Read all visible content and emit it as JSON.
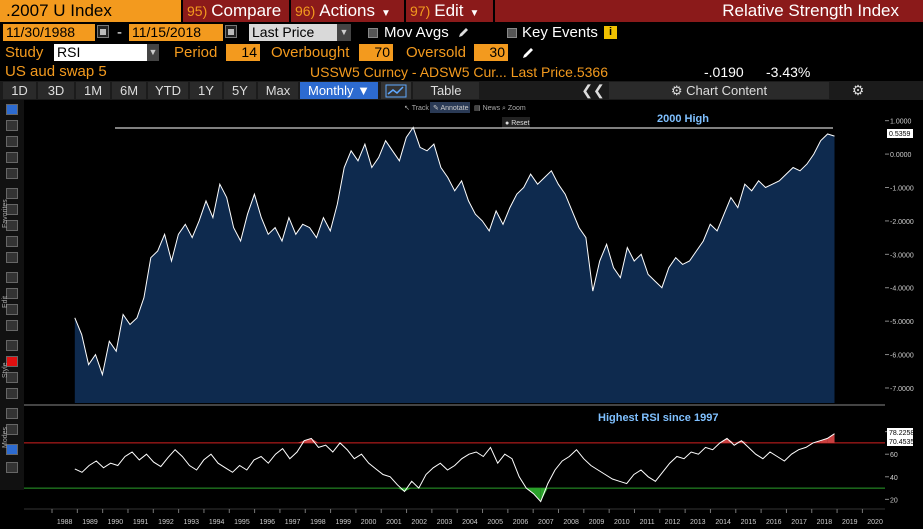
{
  "header": {
    "ticker": ".2007 U Index",
    "compare": {
      "num": "95)",
      "label": "Compare"
    },
    "actions": {
      "num": "96)",
      "label": "Actions"
    },
    "edit": {
      "num": "97)",
      "label": "Edit"
    },
    "study_title": "Relative Strength Index"
  },
  "controls": {
    "start_date": "11/30/1988",
    "dash": "-",
    "end_date": "11/15/2018",
    "price_field": "Last Price",
    "mov_avgs_label": "Mov Avgs",
    "key_events_label": "Key Events",
    "info_icon": "i",
    "study_label": "Study",
    "study_value": "RSI",
    "period_label": "Period",
    "period_value": "14",
    "overbought_label": "Overbought",
    "overbought_value": "70",
    "oversold_label": "Oversold",
    "oversold_value": "30"
  },
  "security": {
    "name": "US aud swap 5",
    "desc": "USSW5 Curncy - ADSW5 Cur... Last Price",
    "last": ".5366",
    "change": "-.0190",
    "pct": "-3.43%"
  },
  "toolbar": {
    "periods": [
      "1D",
      "3D",
      "1M",
      "6M",
      "YTD",
      "1Y",
      "5Y",
      "Max"
    ],
    "frequency": "Monthly",
    "table_label": "Table",
    "chart_content_label": "Chart Content"
  },
  "chart_tools": {
    "track": "Track",
    "annotate": "Annotate",
    "news": "News",
    "zoom": "Zoom",
    "reset": "Reset"
  },
  "side_labels": {
    "favorites": "Favorites",
    "edit": "Edit",
    "style": "Style",
    "modes": "Modes"
  },
  "colors": {
    "orange": "#f39a1e",
    "header_red": "#8b1a1a",
    "area_fill": "#0e2a4e",
    "line": "#ffffff",
    "overbought_line": "#d42020",
    "oversold_line": "#2aa02a",
    "annotation": "#7fc0ff"
  },
  "chart_data": [
    {
      "type": "area",
      "title": "",
      "annotation": "2000 High",
      "last_value_label": "0.5359",
      "y_ticks": [
        "1.0000",
        "0.0000",
        "-1.0000",
        "-2.0000",
        "-3.0000",
        "-4.0000",
        "-5.0000",
        "-6.0000",
        "-7.0000"
      ],
      "y_tick_values": [
        1,
        0,
        -1,
        -2,
        -3,
        -4,
        -5,
        -6,
        -7
      ],
      "ylim": [
        -7.3,
        1.2
      ],
      "reference_level": 0.78,
      "x_start": 1988.9,
      "x_end": 2018.9,
      "series": [
        {
          "values": [
            -4.9,
            -5.4,
            -6.3,
            -6.0,
            -6.6,
            -5.6,
            -5.9,
            -4.8,
            -5.1,
            -4.9,
            -4.3,
            -3.1,
            -2.9,
            -2.4,
            -3.2,
            -2.4,
            -2.1,
            -2.5,
            -2.0,
            -1.4,
            -1.9,
            -0.9,
            -1.3,
            -2.2,
            -2.6,
            -1.8,
            -1.2,
            -1.9,
            -2.4,
            -2.2,
            -2.6,
            -1.9,
            -2.4,
            -2.1,
            -2.2,
            -2.5,
            -1.9,
            -2.3,
            -1.5,
            -0.4,
            0.1,
            -0.2,
            0.3,
            -0.4,
            -0.1,
            0.4,
            0.1,
            -0.2,
            0.5,
            0.8,
            0.2,
            0.1,
            0.3,
            -0.4,
            -0.7,
            -1.1,
            -0.8,
            -1.4,
            -1.8,
            -2.0,
            -2.3,
            -1.7,
            -2.1,
            -1.6,
            -1.2,
            -1.0,
            -0.6,
            -0.9,
            -0.7,
            -0.5,
            -0.9,
            -1.2,
            -1.7,
            -2.2,
            -2.5,
            -4.1,
            -3.2,
            -2.7,
            -3.4,
            -3.7,
            -2.8,
            -3.2,
            -3.0,
            -3.6,
            -3.8,
            -4.0,
            -3.4,
            -3.1,
            -3.3,
            -3.2,
            -2.9,
            -2.6,
            -2.1,
            -2.3,
            -1.8,
            -1.3,
            -1.6,
            -0.9,
            -1.1,
            -0.8,
            -1.0,
            -0.9,
            -0.8,
            -0.6,
            -0.4,
            -0.5,
            -0.3,
            0.0,
            0.4,
            0.6,
            0.54
          ]
        }
      ]
    },
    {
      "type": "line",
      "title": "Highest RSI since 1997",
      "y_ticks": [
        "80",
        "60",
        "40",
        "20"
      ],
      "y_tick_values": [
        80,
        60,
        40,
        20
      ],
      "ylim": [
        15,
        85
      ],
      "overbought": 70,
      "oversold": 30,
      "last_value_labels": [
        "78.2258",
        "70.4535"
      ],
      "x_ticks": [
        "1988",
        "1989",
        "1990",
        "1991",
        "1992",
        "1993",
        "1994",
        "1995",
        "1996",
        "1997",
        "1998",
        "1999",
        "2000",
        "2001",
        "2002",
        "2003",
        "2004",
        "2005",
        "2006",
        "2007",
        "2008",
        "2009",
        "2010",
        "2011",
        "2012",
        "2013",
        "2014",
        "2015",
        "2016",
        "2017",
        "2018",
        "2019",
        "2020"
      ],
      "x_start": 1988.9,
      "x_end": 2018.9,
      "series": [
        {
          "values": [
            47,
            44,
            50,
            54,
            48,
            52,
            50,
            58,
            62,
            55,
            60,
            53,
            49,
            57,
            64,
            58,
            50,
            46,
            55,
            60,
            52,
            48,
            44,
            50,
            46,
            55,
            58,
            52,
            60,
            65,
            56,
            62,
            72,
            74,
            66,
            68,
            62,
            70,
            64,
            56,
            60,
            52,
            47,
            42,
            40,
            33,
            27,
            36,
            30,
            42,
            48,
            52,
            46,
            50,
            56,
            60,
            62,
            58,
            66,
            52,
            60,
            56,
            40,
            30,
            25,
            18,
            34,
            46,
            54,
            58,
            64,
            56,
            50,
            46,
            42,
            38,
            36,
            34,
            42,
            46,
            40,
            36,
            44,
            52,
            58,
            56,
            62,
            60,
            66,
            64,
            70,
            74,
            68,
            72,
            66,
            60,
            56,
            62,
            58,
            54,
            60,
            64,
            66,
            70,
            72,
            74,
            78.2
          ]
        }
      ]
    }
  ]
}
